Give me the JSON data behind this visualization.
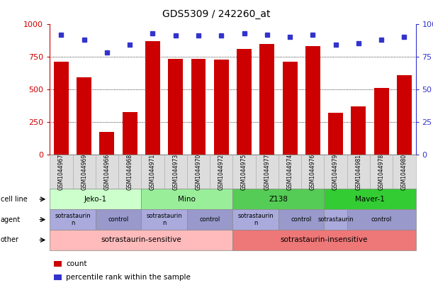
{
  "title": "GDS5309 / 242260_at",
  "samples": [
    "GSM1044967",
    "GSM1044969",
    "GSM1044966",
    "GSM1044968",
    "GSM1044971",
    "GSM1044973",
    "GSM1044970",
    "GSM1044972",
    "GSM1044975",
    "GSM1044977",
    "GSM1044974",
    "GSM1044976",
    "GSM1044979",
    "GSM1044981",
    "GSM1044978",
    "GSM1044980"
  ],
  "counts": [
    710,
    590,
    175,
    325,
    870,
    735,
    735,
    730,
    810,
    845,
    710,
    830,
    320,
    370,
    510,
    610
  ],
  "percentile_ranks": [
    92,
    88,
    78,
    84,
    93,
    91,
    91,
    91,
    93,
    92,
    90,
    92,
    84,
    85,
    88,
    90
  ],
  "ylim_left": [
    0,
    1000
  ],
  "ylim_right": [
    0,
    100
  ],
  "yticks_left": [
    0,
    250,
    500,
    750,
    1000
  ],
  "yticks_right": [
    0,
    25,
    50,
    75,
    100
  ],
  "bar_color": "#cc0000",
  "dot_color": "#3333cc",
  "grid_lines": [
    250,
    500,
    750
  ],
  "cell_lines": [
    {
      "label": "Jeko-1",
      "start": 0,
      "end": 4,
      "color": "#ccffcc"
    },
    {
      "label": "Mino",
      "start": 4,
      "end": 8,
      "color": "#99ee99"
    },
    {
      "label": "Z138",
      "start": 8,
      "end": 12,
      "color": "#55cc55"
    },
    {
      "label": "Maver-1",
      "start": 12,
      "end": 16,
      "color": "#33cc33"
    }
  ],
  "agents": [
    {
      "label": "sotrastaurin\nn",
      "start": 0,
      "end": 2,
      "color": "#aaaadd"
    },
    {
      "label": "control",
      "start": 2,
      "end": 4,
      "color": "#9999cc"
    },
    {
      "label": "sotrastaurin\nn",
      "start": 4,
      "end": 6,
      "color": "#aaaadd"
    },
    {
      "label": "control",
      "start": 6,
      "end": 8,
      "color": "#9999cc"
    },
    {
      "label": "sotrastaurin\nn",
      "start": 8,
      "end": 10,
      "color": "#aaaadd"
    },
    {
      "label": "control",
      "start": 10,
      "end": 12,
      "color": "#9999cc"
    },
    {
      "label": "sotrastaurin",
      "start": 12,
      "end": 13,
      "color": "#aaaadd"
    },
    {
      "label": "control",
      "start": 13,
      "end": 16,
      "color": "#9999cc"
    }
  ],
  "others": [
    {
      "label": "sotrastaurin-sensitive",
      "start": 0,
      "end": 8,
      "color": "#ffbbbb"
    },
    {
      "label": "sotrastaurin-insensitive",
      "start": 8,
      "end": 16,
      "color": "#ee7777"
    }
  ],
  "row_labels": [
    "cell line",
    "agent",
    "other"
  ],
  "legend_items": [
    {
      "label": "count",
      "color": "#cc0000"
    },
    {
      "label": "percentile rank within the sample",
      "color": "#3333cc"
    }
  ],
  "bg_color": "#ffffff",
  "tick_bg": "#dddddd"
}
